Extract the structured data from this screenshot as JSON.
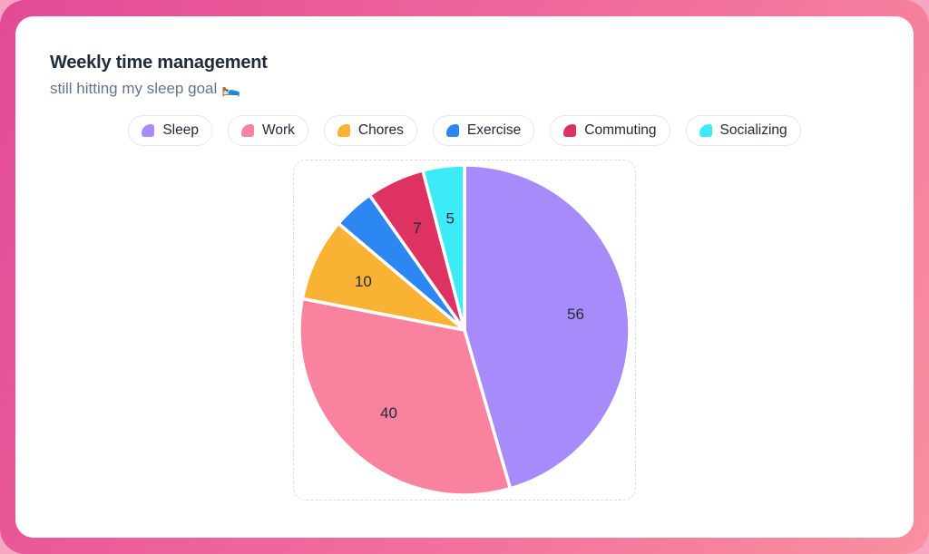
{
  "header": {
    "title": "Weekly time management",
    "subtitle": "still hitting my sleep goal 🛌"
  },
  "legend": {
    "items": [
      {
        "label": "Sleep",
        "color": "#A78BFA"
      },
      {
        "label": "Work",
        "color": "#F9829E"
      },
      {
        "label": "Chores",
        "color": "#F9B233"
      },
      {
        "label": "Exercise",
        "color": "#2D87F3"
      },
      {
        "label": "Commuting",
        "color": "#DE3263"
      },
      {
        "label": "Socializing",
        "color": "#3DEBF7"
      }
    ]
  },
  "chart_data": {
    "type": "pie",
    "title": "Weekly time management",
    "categories": [
      "Sleep",
      "Work",
      "Chores",
      "Exercise",
      "Commuting",
      "Socializing"
    ],
    "values": [
      56,
      40,
      10,
      5,
      7,
      5
    ],
    "colors": [
      "#A78BFA",
      "#F9829E",
      "#F9B233",
      "#2D87F3",
      "#DE3263",
      "#3DEBF7"
    ],
    "value_labels_visible": [
      true,
      true,
      true,
      false,
      true,
      true
    ],
    "start_angle_deg": -90,
    "direction": "clockwise",
    "slice_gap_color": "#FFFFFF",
    "label_color": "#222B38",
    "legend_position": "top"
  },
  "theme": {
    "page_background": "#F7A6C1",
    "frame_gradient_start": "#E24B96",
    "frame_gradient_end": "#F9909F",
    "card_background": "#FFFFFF",
    "title_color": "#212B3B",
    "subtitle_color": "#64748B",
    "pill_border_color": "#E5E8EC",
    "dashed_border_color": "#D9DDE3"
  }
}
